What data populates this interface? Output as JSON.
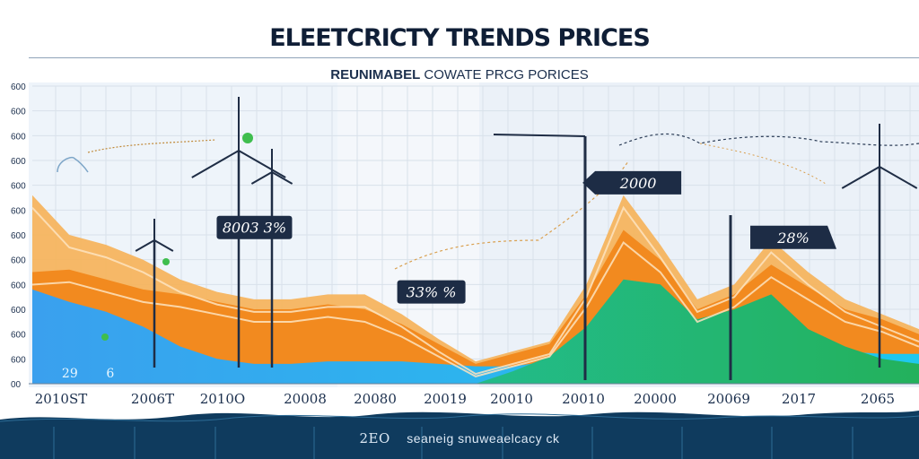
{
  "page": {
    "title": "ELEETCRICTY TRENDS PRICES",
    "subtitle_bold": "REUNIMABEL",
    "subtitle_rest": "COWATE PRCG PORICES",
    "footer_num": "2EO",
    "footer_text": "seaneig snuweaelcacy ck"
  },
  "colors": {
    "orange": "#f28a1f",
    "light_orange": "#f6b45f",
    "blue": "#29aaf0",
    "teal": "#22c6b8",
    "green": "#23b15c",
    "navy": "#1b2f4d",
    "wave": "#0f3b5e",
    "grid": "#d8e1ea"
  },
  "chart_data": {
    "type": "area",
    "title": "ELEETCRICTY TRENDS PRICES",
    "subtitle": "REUNIMABEL COWATE PRCG PORICES",
    "y_ticks": [
      "600",
      "600",
      "600",
      "600",
      "600",
      "600",
      "600",
      "600",
      "600",
      "600",
      "600",
      "600",
      "00"
    ],
    "ylim": [
      0,
      12
    ],
    "x_ticks": [
      "2010ST",
      "2006T",
      "2010O",
      "20008",
      "20080",
      "20019",
      "20010",
      "20010",
      "20000",
      "20069",
      "2017",
      "2065"
    ],
    "x": [
      0,
      0.5,
      1,
      1.5,
      2,
      2.5,
      3,
      3.5,
      4,
      4.5,
      5,
      5.5,
      6,
      6.5,
      7,
      7.5,
      8,
      8.5,
      9,
      9.5,
      10,
      10.5,
      11,
      11.5,
      12
    ],
    "series": [
      {
        "name": "light orange",
        "values": [
          7.6,
          6.0,
          5.6,
          5.0,
          4.2,
          3.7,
          3.4,
          3.4,
          3.6,
          3.6,
          2.8,
          1.8,
          0.9,
          1.3,
          1.7,
          4.0,
          7.6,
          5.6,
          3.4,
          4.0,
          5.8,
          4.5,
          3.4,
          2.8,
          2.2
        ]
      },
      {
        "name": "orange",
        "values": [
          4.5,
          4.6,
          4.2,
          3.8,
          3.6,
          3.3,
          3.0,
          3.0,
          3.2,
          3.0,
          2.4,
          1.6,
          0.8,
          1.2,
          1.6,
          3.6,
          6.2,
          5.0,
          3.0,
          3.6,
          4.8,
          3.9,
          3.0,
          2.6,
          2.0
        ]
      },
      {
        "name": "blue",
        "values": [
          3.8,
          3.3,
          2.9,
          2.3,
          1.5,
          1.0,
          0.8,
          0.8,
          0.9,
          0.9,
          0.9,
          0.8,
          0.7,
          0.7,
          0.9,
          1.5,
          1.9,
          1.6,
          1.5,
          1.5,
          1.4,
          1.3,
          1.3,
          1.2,
          1.2
        ]
      },
      {
        "name": "green",
        "values": [
          0,
          0,
          0,
          0,
          0,
          0,
          0,
          0,
          0,
          0,
          0,
          0,
          0,
          0.5,
          1.1,
          2.3,
          4.2,
          4.0,
          2.6,
          3.0,
          3.6,
          2.2,
          1.5,
          1.0,
          0.8
        ]
      }
    ],
    "annotations": [
      {
        "text": "8003 3%",
        "x": 3.2,
        "y": 6.3
      },
      {
        "text": "33% %",
        "x": 5.4,
        "y": 3.7
      },
      {
        "text": "2000",
        "x": 8.2,
        "y": 8.1
      },
      {
        "text": "28%",
        "x": 10.3,
        "y": 5.9
      }
    ],
    "inline_labels": [
      {
        "text": "29",
        "x": 0.4,
        "y": 0.4
      },
      {
        "text": "6",
        "x": 1.0,
        "y": 0.4
      }
    ]
  }
}
